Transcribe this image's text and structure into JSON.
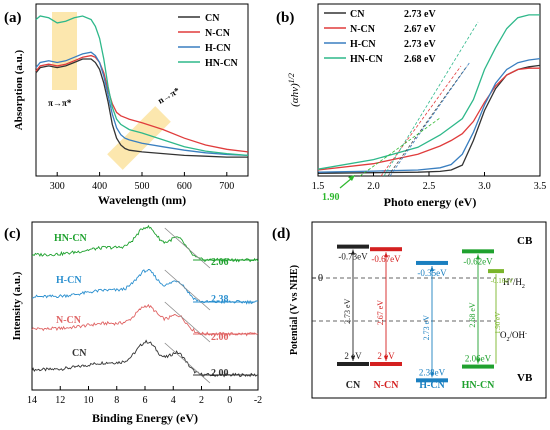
{
  "chart_data": [
    {
      "panel": "(a)",
      "type": "line",
      "xlabel": "Wavelength (nm)",
      "ylabel": "Absorption (a.u.)",
      "xlim": [
        250,
        750
      ],
      "xticks": [
        300,
        400,
        500,
        600,
        700
      ],
      "legend": [
        "CN",
        "N-CN",
        "H-CN",
        "HN-CN"
      ],
      "legend_position": "top-right",
      "annotations": [
        "π→π*",
        "n→π*"
      ],
      "series": [
        {
          "name": "CN",
          "color": "#333333",
          "x": [
            250,
            260,
            280,
            300,
            320,
            340,
            360,
            380,
            390,
            400,
            410,
            420,
            430,
            440,
            450,
            460,
            470,
            500,
            550,
            600,
            650,
            700,
            750
          ],
          "y": [
            0.6,
            0.63,
            0.64,
            0.63,
            0.64,
            0.66,
            0.68,
            0.68,
            0.66,
            0.62,
            0.54,
            0.43,
            0.3,
            0.22,
            0.18,
            0.16,
            0.15,
            0.14,
            0.13,
            0.12,
            0.115,
            0.11,
            0.11
          ]
        },
        {
          "name": "N-CN",
          "color": "#e03c3c",
          "x": [
            250,
            260,
            280,
            300,
            320,
            340,
            360,
            380,
            390,
            400,
            410,
            420,
            430,
            440,
            450,
            470,
            500,
            550,
            600,
            650,
            700,
            750
          ],
          "y": [
            0.61,
            0.64,
            0.65,
            0.64,
            0.65,
            0.67,
            0.69,
            0.7,
            0.69,
            0.66,
            0.6,
            0.5,
            0.42,
            0.37,
            0.35,
            0.33,
            0.31,
            0.27,
            0.22,
            0.18,
            0.155,
            0.14
          ]
        },
        {
          "name": "H-CN",
          "color": "#3a7fc0",
          "x": [
            250,
            260,
            280,
            300,
            320,
            340,
            360,
            380,
            390,
            400,
            410,
            420,
            430,
            440,
            450,
            460,
            470,
            500,
            550,
            600,
            650,
            700,
            750
          ],
          "y": [
            0.63,
            0.66,
            0.67,
            0.66,
            0.67,
            0.69,
            0.71,
            0.72,
            0.7,
            0.66,
            0.58,
            0.47,
            0.36,
            0.28,
            0.24,
            0.22,
            0.21,
            0.19,
            0.17,
            0.15,
            0.135,
            0.125,
            0.12
          ]
        },
        {
          "name": "HN-CN",
          "color": "#2eb88a",
          "x": [
            250,
            260,
            280,
            300,
            320,
            340,
            360,
            380,
            390,
            400,
            410,
            420,
            430,
            440,
            450,
            470,
            500,
            550,
            600,
            650,
            700,
            750
          ],
          "y": [
            0.91,
            0.93,
            0.92,
            0.89,
            0.9,
            0.92,
            0.93,
            0.91,
            0.87,
            0.8,
            0.68,
            0.52,
            0.4,
            0.33,
            0.3,
            0.27,
            0.25,
            0.21,
            0.17,
            0.145,
            0.13,
            0.12
          ]
        }
      ]
    },
    {
      "panel": "(b)",
      "type": "line",
      "xlabel": "Photo energy (eV)",
      "ylabel": "(αhν)^1/2",
      "xlim": [
        1.5,
        3.5
      ],
      "xticks": [
        1.5,
        2.0,
        2.5,
        3.0,
        3.5
      ],
      "legend": [
        {
          "name": "CN",
          "value": "2.73 eV"
        },
        {
          "name": "N-CN",
          "value": "2.67 eV"
        },
        {
          "name": "H-CN",
          "value": "2.73 eV"
        },
        {
          "name": "HN-CN",
          "value": "2.68 eV"
        }
      ],
      "legend_position": "top-left",
      "annotations": [
        "1.90"
      ],
      "series": [
        {
          "name": "CN",
          "color": "#333333",
          "x": [
            1.5,
            2.0,
            2.4,
            2.6,
            2.7,
            2.8,
            2.9,
            3.0,
            3.1,
            3.2,
            3.3,
            3.4,
            3.5
          ],
          "y": [
            0.1,
            0.12,
            0.14,
            0.17,
            0.22,
            0.4,
            1.3,
            2.4,
            3.2,
            3.7,
            3.9,
            4.0,
            4.05
          ]
        },
        {
          "name": "N-CN",
          "color": "#e03c3c",
          "x": [
            1.5,
            2.0,
            2.4,
            2.6,
            2.7,
            2.8,
            2.9,
            3.0,
            3.1,
            3.2,
            3.3,
            3.4,
            3.5
          ],
          "y": [
            0.22,
            0.45,
            0.8,
            1.1,
            1.3,
            1.55,
            2.0,
            2.7,
            3.3,
            3.7,
            3.9,
            3.95,
            3.95
          ]
        },
        {
          "name": "H-CN",
          "color": "#3a7fc0",
          "x": [
            1.5,
            2.0,
            2.4,
            2.6,
            2.7,
            2.8,
            2.9,
            3.0,
            3.1,
            3.2,
            3.3,
            3.4,
            3.5
          ],
          "y": [
            0.14,
            0.18,
            0.22,
            0.3,
            0.42,
            0.8,
            1.6,
            2.6,
            3.4,
            3.9,
            4.15,
            4.25,
            4.3
          ]
        },
        {
          "name": "HN-CN",
          "color": "#2eb88a",
          "x": [
            1.5,
            2.0,
            2.4,
            2.6,
            2.7,
            2.8,
            2.9,
            3.0,
            3.1,
            3.2,
            3.3,
            3.4,
            3.5
          ],
          "y": [
            0.25,
            0.6,
            1.05,
            1.5,
            1.8,
            2.1,
            2.8,
            3.9,
            4.7,
            5.4,
            5.8,
            5.9,
            5.9
          ]
        }
      ]
    },
    {
      "panel": "(c)",
      "type": "line",
      "xlabel": "Binding Energy (eV)",
      "ylabel": "Intensity (a.u.)",
      "xlim": [
        14,
        -2
      ],
      "xticks": [
        14,
        12,
        10,
        8,
        6,
        4,
        2,
        0,
        -2
      ],
      "series": [
        {
          "name": "CN",
          "color": "#333333",
          "label_value": "2.00"
        },
        {
          "name": "N-CN",
          "color": "#e06565",
          "label_value": "2.00"
        },
        {
          "name": "H-CN",
          "color": "#2a8fcf",
          "label_value": "2.38"
        },
        {
          "name": "HN-CN",
          "color": "#1ea12e",
          "label_value": "2.06"
        }
      ]
    },
    {
      "panel": "(d)",
      "type": "diagram",
      "ylabel": "Potential (V vs NHE)",
      "ref_labels": [
        "H+/H2",
        "O2/OH-"
      ],
      "band_labels": [
        "CB",
        "VB"
      ],
      "samples": [
        {
          "name": "CN",
          "color": "#222222",
          "cb": "-0.73eV",
          "vb": "2 eV",
          "gap": "2.73 eV"
        },
        {
          "name": "N-CN",
          "color": "#d42020",
          "cb": "-0.67eV",
          "vb": "2 eV",
          "gap": "2.67 eV"
        },
        {
          "name": "H-CN",
          "color": "#1a7fc0",
          "cb": "-0.35eV",
          "vb": "2.38eV",
          "gap": "2.73 eV"
        },
        {
          "name": "HN-CN",
          "color": "#1fa12e",
          "cb": "-0.62eV",
          "vb": "2.06eV",
          "gap": "2.68 eV",
          "sub_color": "#7ab52a",
          "sub_cb": "-0.16eV",
          "sub_gap": "1.90 eV"
        }
      ]
    }
  ]
}
